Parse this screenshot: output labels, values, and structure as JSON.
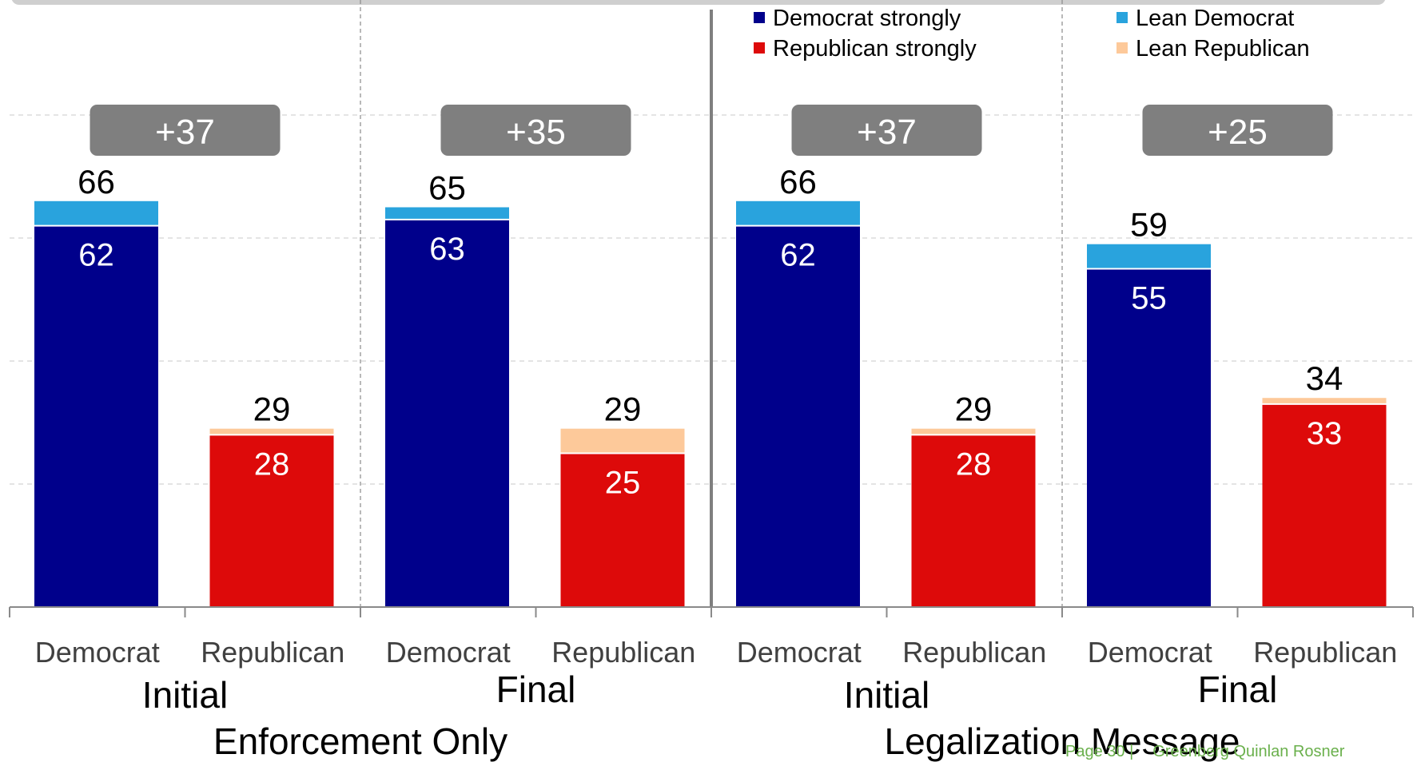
{
  "chart_data": {
    "type": "bar",
    "stacked": true,
    "legend": [
      {
        "name": "Democrat strongly",
        "color": "#00008b"
      },
      {
        "name": "Lean Democrat",
        "color": "#29a3dd"
      },
      {
        "name": "Republican strongly",
        "color": "#dd0a0a"
      },
      {
        "name": "Lean Republican",
        "color": "#fdc99a"
      }
    ],
    "legend_position": "top-right",
    "ylim": [
      0,
      100
    ],
    "grid": true,
    "top_groups": [
      "Enforcement Only",
      "Legalization Message"
    ],
    "sub_groups": [
      {
        "label": "Initial",
        "group": "Enforcement Only",
        "margin": "+37"
      },
      {
        "label": "Final",
        "group": "Enforcement Only",
        "margin": "+35"
      },
      {
        "label": "Initial",
        "group": "Legalization Message",
        "margin": "+37"
      },
      {
        "label": "Final",
        "group": "Legalization Message",
        "margin": "+25"
      }
    ],
    "bars": [
      {
        "category": "Democrat",
        "party": "dem",
        "strong": 62,
        "total": 66
      },
      {
        "category": "Republican",
        "party": "rep",
        "strong": 28,
        "total": 29
      },
      {
        "category": "Democrat",
        "party": "dem",
        "strong": 63,
        "total": 65
      },
      {
        "category": "Republican",
        "party": "rep",
        "strong": 25,
        "total": 29
      },
      {
        "category": "Democrat",
        "party": "dem",
        "strong": 62,
        "total": 66
      },
      {
        "category": "Republican",
        "party": "rep",
        "strong": 28,
        "total": 29
      },
      {
        "category": "Democrat",
        "party": "dem",
        "strong": 55,
        "total": 59
      },
      {
        "category": "Republican",
        "party": "rep",
        "strong": 33,
        "total": 34
      }
    ]
  },
  "colors": {
    "dem_strong": "#00008b",
    "dem_lean": "#29a3dd",
    "rep_strong": "#dd0a0a",
    "rep_lean": "#fdc99a",
    "badge": "#7f7f7f",
    "grid": "#c8c8c8",
    "divider": "#7f7f7f"
  },
  "footer": {
    "page": "Page 30 |",
    "brand": "Greenberg Quinlan Rosner"
  }
}
